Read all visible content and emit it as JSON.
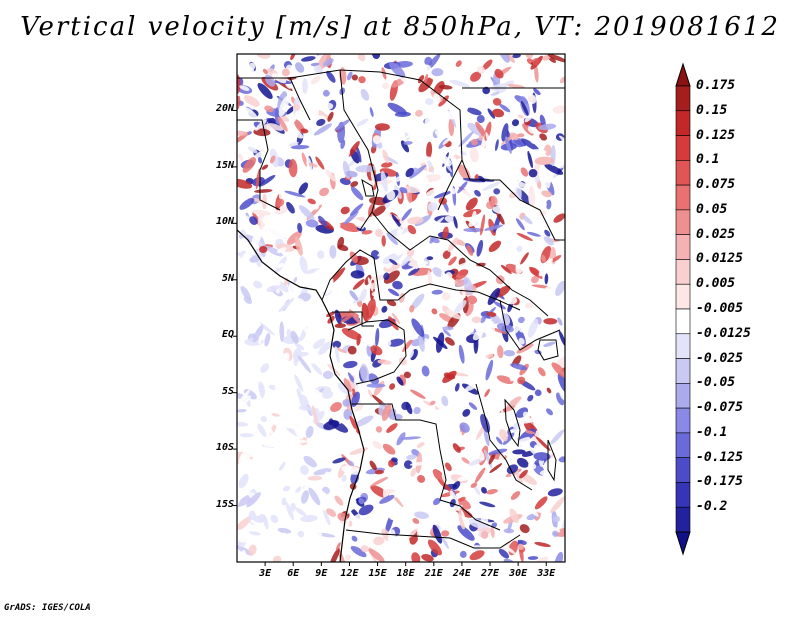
{
  "title": "Vertical velocity [m/s] at 850hPa, VT: 2019081612",
  "credit": "GrADS: IGES/COLA",
  "map": {
    "lat_ticks": [
      "20N",
      "15N",
      "10N",
      "5N",
      "EQ",
      "5S",
      "10S",
      "15S"
    ],
    "lon_ticks": [
      "3E",
      "6E",
      "9E",
      "12E",
      "15E",
      "18E",
      "21E",
      "24E",
      "27E",
      "30E",
      "33E"
    ],
    "lon_range": [
      0,
      35
    ],
    "lat_range": [
      -20,
      25
    ]
  },
  "colorbar": {
    "labels": [
      "0.175",
      "0.15",
      "0.125",
      "0.1",
      "0.075",
      "0.05",
      "0.025",
      "0.0125",
      "0.005",
      "-0.005",
      "-0.0125",
      "-0.025",
      "-0.05",
      "-0.075",
      "-0.1",
      "-0.125",
      "-0.175",
      "-0.2"
    ],
    "colors": [
      "#a51e1e",
      "#c22828",
      "#d53b3b",
      "#e05555",
      "#e87272",
      "#ef9090",
      "#f5b2b2",
      "#f9d0d0",
      "#fce6e6",
      "#ffffff",
      "#e3e3fa",
      "#c9c9f3",
      "#aaaaed",
      "#8a8ae6",
      "#6a6ad9",
      "#4c4cc9",
      "#3535b5",
      "#22229e",
      "#141490"
    ],
    "top_color": "#8b1212",
    "bottom_color": "#10108a"
  }
}
